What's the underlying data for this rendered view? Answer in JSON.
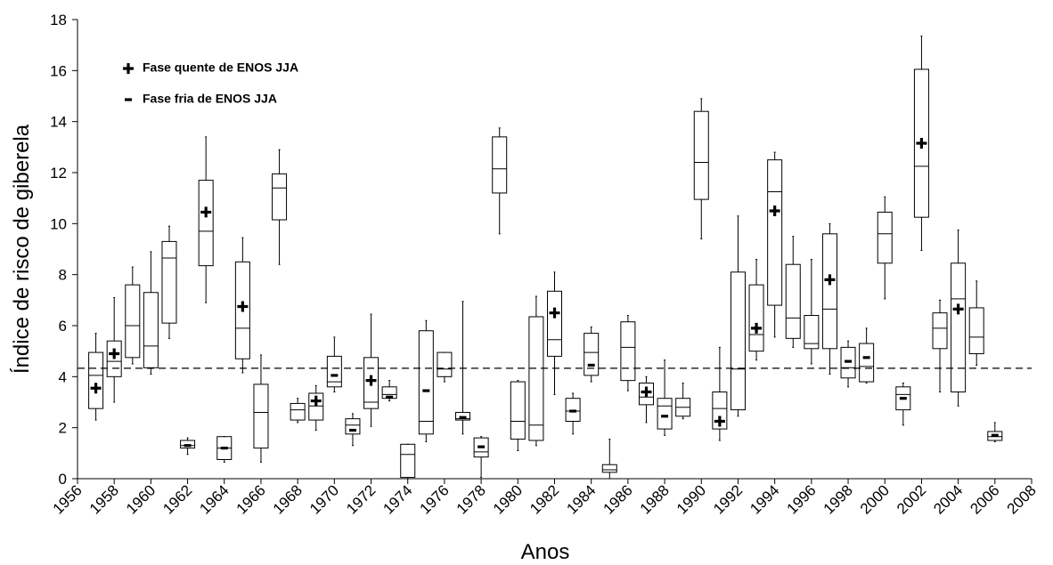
{
  "chart_data": {
    "type": "box",
    "xlabel": "Anos",
    "ylabel": "Índice de risco de giberela",
    "xlim": [
      1956,
      2008
    ],
    "xticks": [
      1956,
      1958,
      1960,
      1962,
      1964,
      1966,
      1968,
      1970,
      1972,
      1974,
      1976,
      1978,
      1980,
      1982,
      1984,
      1986,
      1988,
      1990,
      1992,
      1994,
      1996,
      1998,
      2000,
      2002,
      2004,
      2006,
      2008
    ],
    "ylim": [
      0,
      18
    ],
    "yticks": [
      0,
      2,
      4,
      6,
      8,
      10,
      12,
      14,
      16,
      18
    ],
    "reference_line": 4.33,
    "x": [
      1957,
      1958,
      1959,
      1960,
      1961,
      1962,
      1963,
      1964,
      1965,
      1966,
      1967,
      1968,
      1969,
      1970,
      1971,
      1972,
      1973,
      1974,
      1975,
      1976,
      1977,
      1978,
      1979,
      1980,
      1981,
      1982,
      1983,
      1984,
      1985,
      1986,
      1987,
      1988,
      1989,
      1990,
      1991,
      1992,
      1993,
      1994,
      1995,
      1996,
      1997,
      1998,
      1999,
      2000,
      2001,
      2002,
      2003,
      2004,
      2005,
      2006
    ],
    "min": [
      2.3,
      3.0,
      4.5,
      4.1,
      5.5,
      0.95,
      6.9,
      0.65,
      4.15,
      0.65,
      8.4,
      2.2,
      1.9,
      3.4,
      1.3,
      2.05,
      3.05,
      0,
      1.45,
      3.8,
      1.75,
      0.05,
      9.6,
      1.1,
      1.3,
      3.3,
      1.75,
      3.8,
      0,
      3.45,
      2.2,
      1.7,
      2.35,
      9.4,
      1.5,
      2.45,
      4.65,
      5.55,
      5.15,
      4.5,
      4.1,
      3.6,
      3.75,
      7.05,
      2.1,
      8.95,
      3.4,
      2.85,
      4.45,
      1.45
    ],
    "q1": [
      2.75,
      4.0,
      4.75,
      4.35,
      6.1,
      1.2,
      8.35,
      0.75,
      4.7,
      1.2,
      10.15,
      2.3,
      2.3,
      3.6,
      1.75,
      2.75,
      3.15,
      0.05,
      1.75,
      4.0,
      2.3,
      0.85,
      11.2,
      1.55,
      1.5,
      4.8,
      2.25,
      4.05,
      0.25,
      3.85,
      2.9,
      1.95,
      2.45,
      10.95,
      1.95,
      2.7,
      5.0,
      6.8,
      5.5,
      5.1,
      5.1,
      3.95,
      3.8,
      8.45,
      2.7,
      10.25,
      5.1,
      3.4,
      4.9,
      1.5
    ],
    "median": [
      4.05,
      4.6,
      6.0,
      5.2,
      8.65,
      1.3,
      9.7,
      1.2,
      5.9,
      2.6,
      11.4,
      2.7,
      2.85,
      3.8,
      2.1,
      3.0,
      3.3,
      0.95,
      2.25,
      4.3,
      2.35,
      1.05,
      12.15,
      2.25,
      2.1,
      5.45,
      2.65,
      4.95,
      0.35,
      5.15,
      3.2,
      2.85,
      2.8,
      12.4,
      2.75,
      4.3,
      5.65,
      11.25,
      6.3,
      5.3,
      6.65,
      4.35,
      4.4,
      9.6,
      3.3,
      12.25,
      5.9,
      7.05,
      5.55,
      1.65
    ],
    "q3": [
      4.95,
      5.4,
      7.6,
      7.3,
      9.3,
      1.5,
      11.7,
      1.65,
      8.5,
      3.7,
      11.95,
      2.95,
      3.35,
      4.8,
      2.35,
      4.75,
      3.6,
      1.35,
      5.8,
      4.95,
      2.6,
      1.6,
      13.4,
      3.8,
      6.35,
      7.35,
      3.15,
      5.7,
      0.55,
      6.15,
      3.75,
      3.15,
      3.15,
      14.4,
      3.4,
      8.1,
      7.6,
      12.5,
      8.4,
      6.4,
      9.6,
      5.15,
      5.3,
      10.45,
      3.6,
      16.05,
      6.5,
      8.45,
      6.7,
      1.85
    ],
    "max": [
      5.7,
      7.1,
      8.3,
      8.9,
      9.9,
      1.6,
      13.4,
      1.65,
      9.45,
      4.85,
      12.9,
      3.15,
      3.65,
      5.55,
      2.55,
      6.45,
      3.85,
      1.35,
      6.2,
      4.95,
      6.95,
      1.65,
      13.75,
      3.85,
      7.15,
      8.1,
      3.35,
      5.95,
      1.55,
      6.4,
      4.0,
      4.65,
      3.75,
      14.9,
      5.15,
      10.3,
      8.6,
      12.8,
      9.5,
      8.6,
      10.0,
      5.4,
      5.9,
      11.05,
      3.75,
      17.35,
      7.0,
      9.75,
      7.75,
      2.2
    ],
    "series": [
      {
        "name": "Fase quente de ENOS JJA",
        "marker": "plus",
        "values": [
          3.55,
          4.9,
          null,
          null,
          null,
          null,
          10.45,
          null,
          6.75,
          null,
          null,
          null,
          3.05,
          null,
          null,
          3.85,
          null,
          null,
          null,
          null,
          null,
          null,
          null,
          null,
          null,
          6.5,
          null,
          null,
          null,
          null,
          3.4,
          null,
          null,
          null,
          2.25,
          null,
          5.9,
          10.5,
          null,
          null,
          7.8,
          null,
          null,
          null,
          null,
          13.15,
          null,
          6.65,
          null,
          null
        ]
      },
      {
        "name": "Fase fria de ENOS JJA",
        "marker": "minus",
        "values": [
          null,
          null,
          null,
          null,
          null,
          1.3,
          null,
          1.2,
          null,
          null,
          null,
          null,
          null,
          4.05,
          1.9,
          null,
          3.2,
          null,
          3.45,
          null,
          2.4,
          1.25,
          null,
          null,
          null,
          null,
          2.65,
          4.45,
          null,
          null,
          null,
          2.45,
          null,
          null,
          null,
          null,
          null,
          null,
          null,
          null,
          null,
          4.6,
          4.75,
          null,
          3.15,
          null,
          null,
          null,
          null,
          1.7
        ]
      }
    ]
  }
}
